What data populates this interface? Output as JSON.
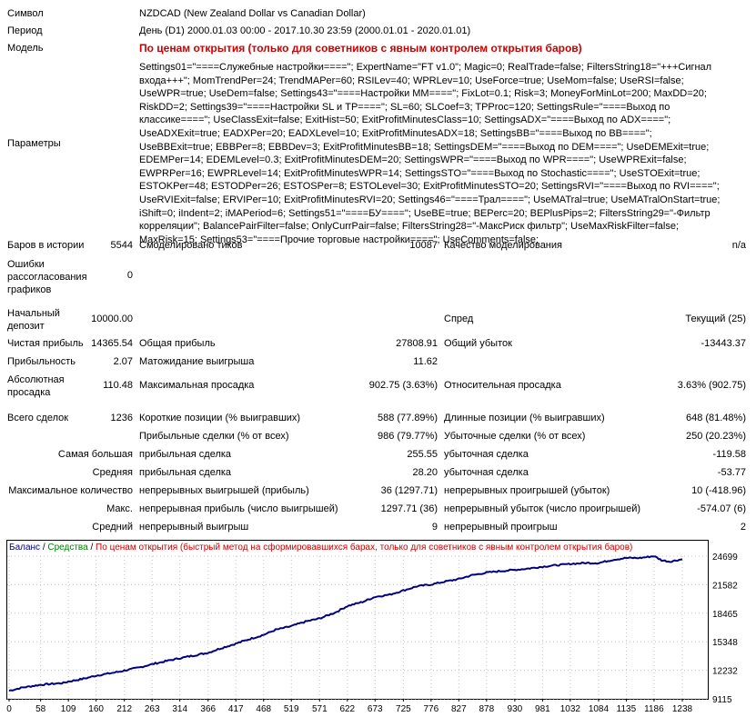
{
  "colors": {
    "balance": "#000080",
    "equity": "#008000",
    "title_red": "#cc0000",
    "grid": "#c0c0c0"
  },
  "info": {
    "symbol_label": "Символ",
    "symbol": "NZDCAD (New Zealand Dollar vs Canadian Dollar)",
    "period_label": "Период",
    "period": "День (D1) 2000.01.03 00:00 - 2017.10.30 23:59 (2000.01.01 - 2020.01.01)",
    "model_label": "Модель",
    "model": "По ценам открытия (только для советников с явным контролем открытия баров)",
    "params_label": "Параметры",
    "params": "Settings01=\"====Служебные настройки====\"; ExpertName=\"FT v1.0\"; Magic=0; RealTrade=false; FiltersString18=\"+++Сигнал входа+++\"; MomTrendPer=24; TrendMAPer=60; RSILev=40; WPRLev=10; UseForce=true; UseMom=false; UseRSI=false; UseWPR=true; UseDem=false; Settings43=\"====Настройки MM====\"; FixLot=0.1; Risk=3; MoneyForMinLot=200; MaxDD=20; RiskDD=2; Settings39=\"====Настройки SL и TP====\"; SL=60; SLCoef=3; TPProc=120; SettingsRule=\"====Выход по классике====\"; UseClassExit=false; ExitHist=50; ExitProfitMinutesClass=10; SettingsADX=\"====Выход по ADX====\"; UseADXExit=true; EADXPer=20; EADXLevel=10; ExitProfitMinutesADX=18; SettingsBB=\"====Выход по BB====\"; UseBBExit=true; EBBPer=8; EBBDev=3; ExitProfitMinutesBB=18; SettingsDEM=\"====Выход по DEM====\"; UseDEMExit=true; EDEMPer=14; EDEMLevel=0.3; ExitProfitMinutesDEM=20; SettingsWPR=\"====Выход по WPR====\"; UseWPRExit=false; EWPRPer=16; EWPRLevel=14; ExitProfitMinutesWPR=14; SettingsSTO=\"====Выход по Stochastic====\"; UseSTOExit=true; ESTOKPer=48; ESTODPer=26; ESTOSPer=8; ESTOLevel=30; ExitProfitMinutesSTO=20; SettingsRVI=\"====Выход по RVI====\"; UseRVIExit=false; ERVIPer=10; ExitProfitMinutesRVI=20; Settings46=\"====Трал====\"; UseMATral=true; UseMATralOnStart=true; iShift=0; iIndent=2; iMAPeriod=6; Settings51=\"====БУ====\"; UseBE=true; BEPerc=20; BEPlusPips=2; FiltersString29=\"-Фильтр корреляции\"; BalancePairFilter=false; OnlyCurrPair=false; FiltersString28=\"-МаксРиск фильтр\"; UseMaxRiskFilter=false; MaxRisk=15; Settings53=\"====Прочие торговые настройки====\"; UseComments=false;"
  },
  "stats": {
    "bars_label": "Баров в истории",
    "bars": "5544",
    "ticks_label": "Смоделировано тиков",
    "ticks": "10087",
    "quality_label": "Качество моделирования",
    "quality": "n/a",
    "errors_label": "Ошибки рассогласования графиков",
    "errors": "0",
    "deposit_label": "Начальный депозит",
    "deposit": "10000.00",
    "spread_label": "Спред",
    "spread": "Текущий (25)",
    "net_label": "Чистая прибыль",
    "net": "14365.54",
    "gross_profit_label": "Общая прибыль",
    "gross_profit": "27808.91",
    "gross_loss_label": "Общий убыток",
    "gross_loss": "-13443.37",
    "pf_label": "Прибыльность",
    "pf": "2.07",
    "payoff_label": "Матожидание выигрыша",
    "payoff": "11.62",
    "abs_dd_label": "Абсолютная просадка",
    "abs_dd": "110.48",
    "max_dd_label": "Максимальная просадка",
    "max_dd": "902.75 (3.63%)",
    "rel_dd_label": "Относительная просадка",
    "rel_dd": "3.63% (902.75)",
    "trades_label": "Всего сделок",
    "trades": "1236",
    "short_label": "Короткие позиции (% выигравших)",
    "short": "588 (77.89%)",
    "long_label": "Длинные позиции (% выигравших)",
    "long": "648 (81.48%)",
    "win_label": "Прибыльные сделки (% от всех)",
    "win": "986 (79.77%)",
    "loss_label": "Убыточные сделки (% от всех)",
    "loss": "250 (20.23%)",
    "largest_label": "Самая большая",
    "largest_win_label": "прибыльная сделка",
    "largest_win": "255.55",
    "largest_loss_label": "убыточная сделка",
    "largest_loss": "-119.58",
    "average_label": "Средняя",
    "avg_win_label": "прибыльная сделка",
    "avg_win": "28.20",
    "avg_loss_label": "убыточная сделка",
    "avg_loss": "-53.77",
    "max_count_label": "Максимальное количество",
    "max_cons_wins_label": "непрерывных выигрышей (прибыль)",
    "max_cons_wins": "36 (1297.71)",
    "max_cons_losses_label": "непрерывных проигрышей (убыток)",
    "max_cons_losses": "10 (-418.96)",
    "max_label": "Макс.",
    "max_cons_profit_label": "непрерывная прибыль (число выигрышей)",
    "max_cons_profit": "1297.71 (36)",
    "max_cons_loss_label": "непрерывный убыток (число проигрышей)",
    "max_cons_loss": "-574.07 (6)",
    "avg_label2": "Средний",
    "avg_cons_wins_label": "непрерывный выигрыш",
    "avg_cons_wins": "9",
    "avg_cons_losses_label": "непрерывный проигрыш",
    "avg_cons_losses": "2"
  },
  "chart_legend": {
    "balance": "Баланс",
    "sep1": " / ",
    "equity": "Средства",
    "sep2": " / ",
    "model": "По ценам открытия (быстрый метод на сформировавшихся барах, только для советников с явным контролем открытия баров)"
  },
  "chart_data": {
    "type": "line",
    "x_ticks": [
      "0",
      "58",
      "109",
      "160",
      "212",
      "263",
      "314",
      "366",
      "417",
      "468",
      "519",
      "571",
      "622",
      "673",
      "725",
      "776",
      "827",
      "878",
      "930",
      "981",
      "1032",
      "1084",
      "1135",
      "1186",
      "1238"
    ],
    "y_ticks": [
      "24699",
      "21582",
      "18465",
      "15348",
      "12232",
      "9115"
    ],
    "ylim": [
      9115,
      24699
    ],
    "xlim": [
      0,
      1238
    ],
    "series": [
      {
        "name": "Баланс",
        "x": [
          0,
          25,
          58,
          100,
          109,
          140,
          160,
          200,
          212,
          240,
          263,
          290,
          314,
          340,
          366,
          390,
          417,
          440,
          468,
          490,
          519,
          545,
          571,
          600,
          622,
          650,
          673,
          700,
          725,
          750,
          776,
          800,
          827,
          850,
          878,
          900,
          930,
          955,
          981,
          1005,
          1032,
          1060,
          1084,
          1110,
          1135,
          1160,
          1186,
          1200,
          1215,
          1238
        ],
        "y": [
          10000,
          10350,
          10650,
          10850,
          11000,
          11350,
          11650,
          12050,
          12200,
          12550,
          12900,
          13250,
          13550,
          13850,
          14150,
          14650,
          15150,
          15600,
          16100,
          16650,
          17050,
          17550,
          17900,
          18550,
          19250,
          19700,
          20250,
          20500,
          20950,
          21400,
          21600,
          21900,
          22200,
          22600,
          22900,
          23050,
          23200,
          23350,
          23550,
          23700,
          23850,
          23950,
          23950,
          24300,
          24500,
          24500,
          24700,
          24250,
          24100,
          24365
        ]
      }
    ]
  }
}
